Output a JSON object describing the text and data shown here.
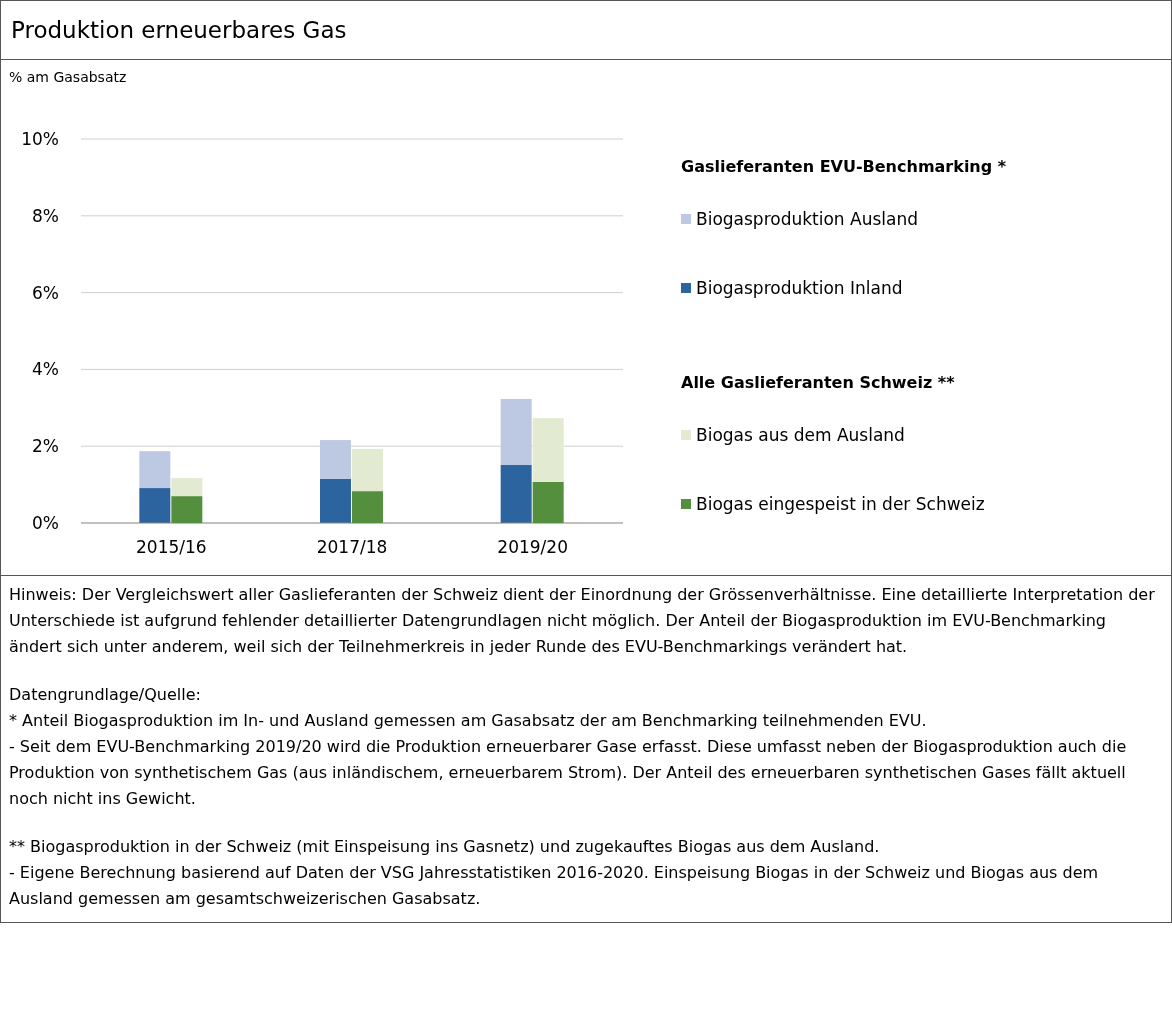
{
  "chart_data": [
    {
      "type": "bar",
      "title": "Produktion erneuerbares Gas",
      "ylabel": "% am Gasabsatz",
      "categories": [
        "2015/16",
        "2017/18",
        "2019/20"
      ],
      "stacked": true,
      "series": [
        {
          "name": "Biogasproduktion Inland",
          "color": "#2c64a0",
          "values": [
            0.91,
            1.15,
            1.51
          ]
        },
        {
          "name": "Biogasproduktion Ausland",
          "color": "#bdc9e3",
          "values": [
            0.96,
            1.01,
            1.72
          ]
        }
      ],
      "ylim": [
        0,
        10
      ],
      "yticks": [
        {
          "value": 0,
          "label": "0%"
        },
        {
          "value": 2,
          "label": "2%"
        },
        {
          "value": 4,
          "label": "4%"
        },
        {
          "value": 6,
          "label": "6%"
        },
        {
          "value": 8,
          "label": "8%"
        },
        {
          "value": 10,
          "label": "10%"
        }
      ],
      "grid": "y",
      "legend": "right",
      "legend_title": "Gaslieferanten EVU-Benchmarking *",
      "annotations": [
        "Hinweis: Der Vergleichswert aller Gaslieferanten der Schweiz dient der Einordnung der Grössenverhältnisse. Eine detaillierte Interpretation der Unterschiede ist aufgrund fehlender detaillierter Datengrundlagen nicht möglich. Der Anteil der Biogasproduktion im EVU-Benchmarking ändert sich unter anderem, weil sich der Teilnehmerkreis in jeder Runde des EVU-Benchmarkings verändert hat.",
        "Datengrundlage/Quelle:",
        "* Anteil Biogasproduktion im In- und Ausland gemessen am Gasabsatz der am Benchmarking teilnehmenden EVU.",
        "- Seit dem EVU-Benchmarking 2019/20 wird die Produktion erneuerbarer Gase erfasst. Diese umfasst neben der Biogasproduktion auch die Produktion von synthetischem Gas (aus inländischem, erneuerbarem Strom). Der Anteil des erneuerbaren synthetischen Gases fällt aktuell noch nicht ins Gewicht.",
        "** Biogasproduktion in der Schweiz (mit Einspeisung ins Gasnetz) und zugekauftes Biogas aus dem Ausland.",
        "- Eigene Berechnung basierend auf Daten der VSG Jahresstatistiken 2016-2020. Einspeisung Biogas in der Schweiz und Biogas aus dem Ausland gemessen am gesamtschweizerischen Gasabsatz."
      ]
    },
    {
      "type": "bar",
      "stacked": true,
      "series": [
        {
          "name": "Biogas eingespeist in der Schweiz",
          "color": "#548f3e",
          "values": [
            0.7,
            0.83,
            1.07
          ]
        },
        {
          "name": "Biogas aus dem Ausland",
          "color": "#e2ebd1",
          "values": [
            0.47,
            1.1,
            1.66
          ]
        }
      ],
      "ylim": [
        0,
        10
      ],
      "tick_labels": false,
      "legend": "right",
      "legend_title": "Alle Gaslieferanten Schweiz  **"
    }
  ]
}
